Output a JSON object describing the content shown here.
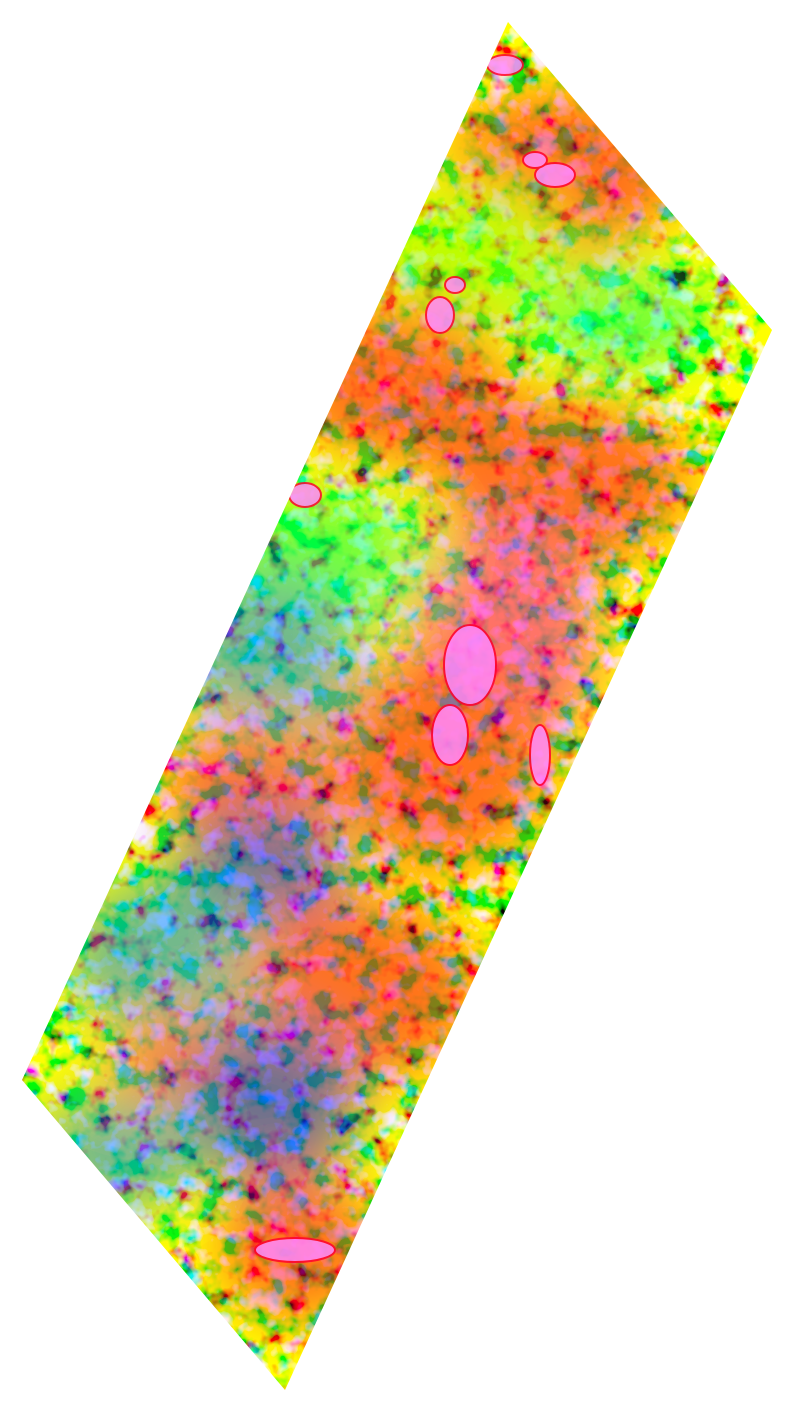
{
  "map": {
    "type": "geophysical-survey-raster",
    "color_scale": [
      "#0000ff",
      "#0080ff",
      "#00ffff",
      "#00ff60",
      "#80ff00",
      "#ffff00",
      "#ff8000",
      "#ff0030",
      "#ff00c0",
      "#ff88ff"
    ],
    "background_color": "#ffffff"
  }
}
